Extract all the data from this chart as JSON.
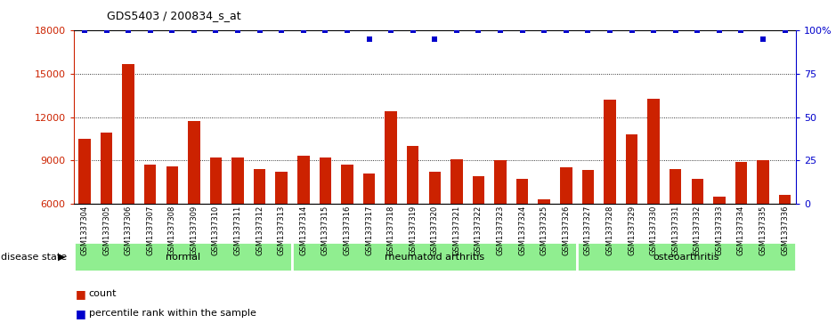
{
  "title": "GDS5403 / 200834_s_at",
  "categories": [
    "GSM1337304",
    "GSM1337305",
    "GSM1337306",
    "GSM1337307",
    "GSM1337308",
    "GSM1337309",
    "GSM1337310",
    "GSM1337311",
    "GSM1337312",
    "GSM1337313",
    "GSM1337314",
    "GSM1337315",
    "GSM1337316",
    "GSM1337317",
    "GSM1337318",
    "GSM1337319",
    "GSM1337320",
    "GSM1337321",
    "GSM1337322",
    "GSM1337323",
    "GSM1337324",
    "GSM1337325",
    "GSM1337326",
    "GSM1337327",
    "GSM1337328",
    "GSM1337329",
    "GSM1337330",
    "GSM1337331",
    "GSM1337332",
    "GSM1337333",
    "GSM1337334",
    "GSM1337335",
    "GSM1337336"
  ],
  "values": [
    10500,
    10900,
    15700,
    8700,
    8600,
    11700,
    9200,
    9200,
    8400,
    8200,
    9300,
    9200,
    8700,
    8100,
    12400,
    10000,
    8200,
    9100,
    7900,
    9000,
    7700,
    6300,
    8500,
    8300,
    13200,
    10800,
    13300,
    8400,
    7700,
    6500,
    8900,
    9000,
    6600
  ],
  "percentile_values": [
    100,
    100,
    100,
    100,
    100,
    100,
    100,
    100,
    100,
    100,
    100,
    100,
    100,
    95,
    100,
    100,
    95,
    100,
    100,
    100,
    100,
    100,
    100,
    100,
    100,
    100,
    100,
    100,
    100,
    100,
    100,
    95,
    100
  ],
  "groups": [
    {
      "label": "normal",
      "start": 0,
      "end": 10
    },
    {
      "label": "rheumatoid arthritis",
      "start": 10,
      "end": 23
    },
    {
      "label": "osteoarthritis",
      "start": 23,
      "end": 33
    }
  ],
  "bar_color": "#CC2200",
  "percentile_color": "#0000CC",
  "ymin": 6000,
  "ymax": 18000,
  "yticks_left": [
    6000,
    9000,
    12000,
    15000,
    18000
  ],
  "yticks_right": [
    0,
    25,
    50,
    75,
    100
  ],
  "green_color": "#90EE90",
  "legend_count": "count",
  "legend_percentile": "percentile rank within the sample",
  "disease_state_text": "disease state"
}
